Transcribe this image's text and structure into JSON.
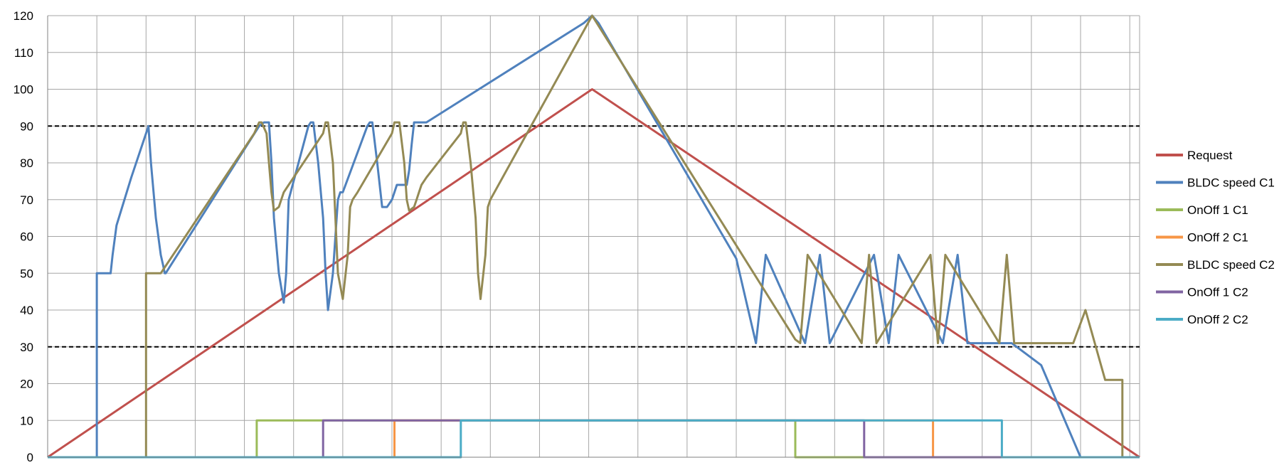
{
  "chart_data": {
    "type": "line",
    "title": "",
    "xlabel": "",
    "ylabel": "",
    "ylim": [
      0,
      120
    ],
    "yticks": [
      0,
      10,
      20,
      30,
      40,
      50,
      60,
      70,
      80,
      90,
      100,
      110,
      120
    ],
    "y_tick_labels": [
      "0",
      "10",
      "20",
      "30",
      "40",
      "50",
      "60",
      "70",
      "80",
      "90",
      "100",
      "110",
      "120"
    ],
    "xlim": [
      0,
      22.2
    ],
    "x_tick_labels": [],
    "grid": true,
    "legend_position": "right",
    "reference_lines": [
      {
        "y": 90,
        "style": "dashed",
        "color": "#000000"
      },
      {
        "y": 30,
        "style": "dashed",
        "color": "#000000"
      }
    ],
    "series": [
      {
        "name": "Request",
        "color": "#C0504D",
        "x": [
          0,
          11.07,
          22.2
        ],
        "y": [
          0,
          100,
          0
        ]
      },
      {
        "name": "BLDC speed C1",
        "color": "#4F81BD",
        "x": [
          0,
          1.0,
          1.0,
          1.02,
          1.28,
          1.32,
          1.4,
          1.7,
          2.0,
          2.05,
          2.1,
          2.2,
          2.3,
          2.35,
          2.38,
          2.4,
          4.3,
          4.4,
          4.5,
          4.55,
          4.6,
          4.7,
          4.8,
          4.85,
          4.9,
          5.3,
          5.35,
          5.4,
          5.5,
          5.6,
          5.65,
          5.7,
          5.8,
          5.9,
          5.95,
          6.0,
          6.5,
          6.55,
          6.6,
          6.7,
          6.8,
          6.9,
          7.0,
          7.05,
          7.1,
          7.3,
          7.35,
          7.4,
          7.45,
          7.5,
          7.6,
          7.65,
          7.7,
          10.9,
          11.07,
          11.2,
          14.0,
          14.4,
          14.6,
          15.4,
          15.7,
          15.9,
          16.8,
          17.1,
          17.3,
          18.2,
          18.5,
          18.7,
          19.6,
          19.9,
          20.2,
          21.0,
          22.2
        ],
        "y": [
          0,
          0,
          50,
          50,
          50,
          55,
          63,
          76,
          88,
          90,
          80,
          65,
          55,
          52,
          50,
          50,
          90,
          91,
          91,
          80,
          65,
          50,
          42,
          50,
          70,
          90,
          91,
          91,
          80,
          65,
          50,
          40,
          50,
          70,
          72,
          72,
          90,
          91,
          91,
          80,
          68,
          68,
          70,
          72,
          74,
          74,
          78,
          85,
          91,
          91,
          91,
          91,
          91,
          118,
          120,
          118,
          54,
          31,
          55,
          31,
          55,
          31,
          55,
          31,
          55,
          31,
          55,
          31,
          31,
          28,
          25,
          0,
          0
        ]
      },
      {
        "name": "OnOff 1 C1",
        "color": "#9BBB59",
        "x": [
          0,
          4.25,
          4.25,
          15.2,
          15.2,
          22.2
        ],
        "y": [
          0,
          0,
          10,
          10,
          0,
          0
        ]
      },
      {
        "name": "OnOff 2 C1",
        "color": "#F79646",
        "x": [
          0,
          7.05,
          7.05,
          18.0,
          18.0,
          22.2
        ],
        "y": [
          0,
          0,
          10,
          10,
          0,
          0
        ]
      },
      {
        "name": "BLDC speed C2",
        "color": "#948A54",
        "x": [
          0,
          2.0,
          2.0,
          2.3,
          4.2,
          4.3,
          4.35,
          4.45,
          4.5,
          4.55,
          4.6,
          4.7,
          4.75,
          4.8,
          4.9,
          5.6,
          5.65,
          5.7,
          5.8,
          5.85,
          5.9,
          6.0,
          6.1,
          6.15,
          6.2,
          6.3,
          7.0,
          7.05,
          7.15,
          7.25,
          7.3,
          7.35,
          7.45,
          7.5,
          7.55,
          7.6,
          7.7,
          8.4,
          8.45,
          8.5,
          8.6,
          8.7,
          8.75,
          8.8,
          8.9,
          8.95,
          9.0,
          11.07,
          15.2,
          15.3,
          15.45,
          16.55,
          16.7,
          16.85,
          17.95,
          18.1,
          18.25,
          19.35,
          19.5,
          19.65,
          20.8,
          20.85,
          21.1,
          21.5,
          21.85,
          21.85,
          22.2
        ],
        "y": [
          0,
          0,
          50,
          50,
          88,
          91,
          91,
          88,
          80,
          72,
          67,
          68,
          70,
          72,
          74,
          88,
          91,
          91,
          80,
          65,
          50,
          43,
          55,
          68,
          70,
          72,
          88,
          91,
          91,
          80,
          70,
          67,
          68,
          70,
          72,
          74,
          76,
          88,
          91,
          91,
          80,
          65,
          50,
          43,
          55,
          68,
          70,
          120,
          32,
          31,
          55,
          31,
          55,
          31,
          55,
          31,
          55,
          31,
          55,
          31,
          31,
          31,
          40,
          21,
          21,
          0,
          0
        ]
      },
      {
        "name": "OnOff 1 C2",
        "color": "#8064A2",
        "x": [
          0,
          5.6,
          5.6,
          16.6,
          16.6,
          22.2
        ],
        "y": [
          0,
          0,
          10,
          10,
          0,
          0
        ]
      },
      {
        "name": "OnOff 2 C2",
        "color": "#4BACC6",
        "x": [
          0,
          8.4,
          8.4,
          19.4,
          19.4,
          22.2
        ],
        "y": [
          0,
          0,
          10,
          10,
          0,
          0
        ]
      }
    ]
  }
}
